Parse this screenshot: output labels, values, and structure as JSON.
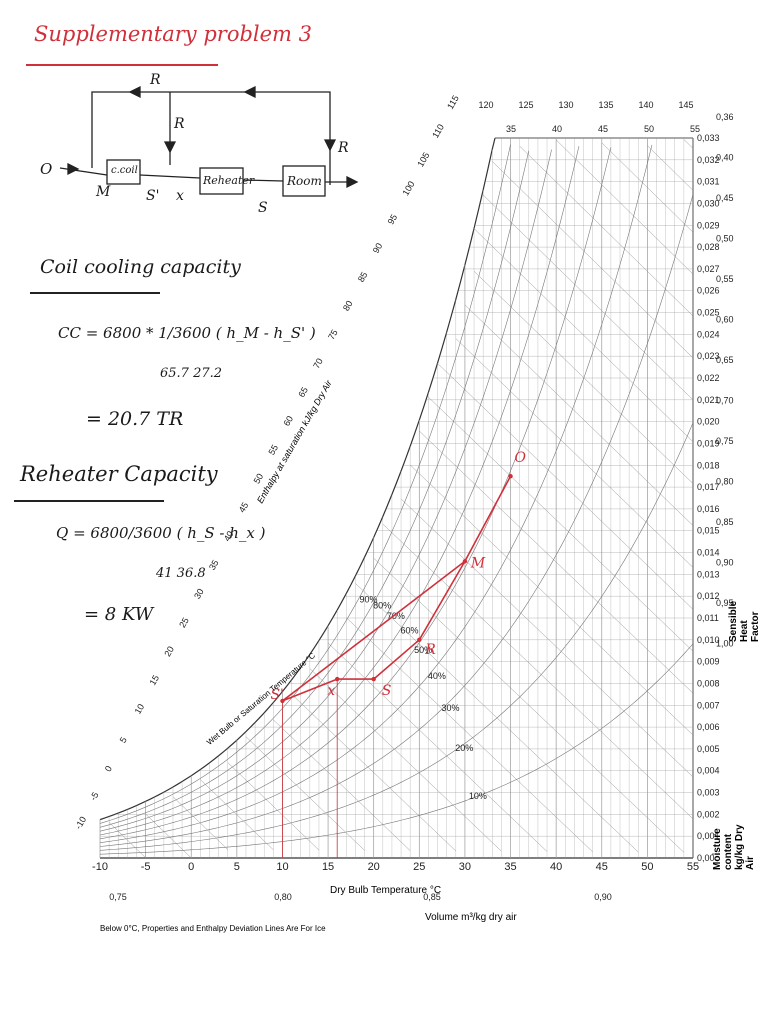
{
  "heading": "Supplementary problem 3",
  "schematic": {
    "labels": {
      "O": "O",
      "M": "M",
      "S1": "S'",
      "x": "x",
      "S": "S",
      "R1": "R",
      "R2": "R",
      "R3": "R"
    },
    "boxes": {
      "coil": "c.coil",
      "reheater": "Reheater",
      "room": "Room"
    }
  },
  "calc": {
    "coil_title": "Coil cooling capacity",
    "cc_eq": "CC = 6800 * 1/3600 ( h_M - h_S' )",
    "cc_vals": "65.7   27.2",
    "cc_result": "= 20.7 TR",
    "reheater_title": "Reheater Capacity",
    "q_eq": "Q = 6800/3600 ( h_S - h_x )",
    "q_vals": "41   36.8",
    "q_result": "= 8 KW"
  },
  "chart_labels": {
    "enthalpy": "Enthalpy at saturation  kJ/kg Dry Air",
    "wetbulb": "Wet Bulb or Saturation Temperature °C",
    "drybulb": "Dry Bulb Temperature  °C",
    "volume": "Volume m³/kg dry air",
    "moisture": "Moisture content  kg/kg Dry Air",
    "shf": "Sensible Heat Factor",
    "footnote": "Below 0°C,  Properties and Enthalpy Deviation Lines Are For Ice"
  },
  "chart_data": {
    "type": "psychrometric",
    "x_ticks": [
      "-10",
      "-5",
      "0",
      "5",
      "10",
      "15",
      "20",
      "25",
      "30",
      "35",
      "40",
      "45",
      "50",
      "55"
    ],
    "y_ticks": [
      "0,00",
      "0,001",
      "0,002",
      "0,003",
      "0,004",
      "0,005",
      "0,006",
      "0,007",
      "0,008",
      "0,009",
      "0,010",
      "0,011",
      "0,012",
      "0,013",
      "0,014",
      "0,015",
      "0,016",
      "0,017",
      "0,018",
      "0,019",
      "0,020",
      "0,021",
      "0,022",
      "0,023",
      "0,024",
      "0,025",
      "0,026",
      "0,027",
      "0,028",
      "0,029",
      "0,030",
      "0,031",
      "0,032",
      "0,033"
    ],
    "volume_ticks": [
      "0,75",
      "0,80",
      "0,85",
      "0,90"
    ],
    "top_enthalpy_ticks": [
      "120",
      "125",
      "130",
      "135",
      "140",
      "145"
    ],
    "top_wb_ticks": [
      "35",
      "40",
      "45",
      "50",
      "55"
    ],
    "shf_ticks": [
      "0,36",
      "0,40",
      "0,45",
      "0,50",
      "0,55",
      "0,60",
      "0,65",
      "0,70",
      "0,75",
      "0,80",
      "0,85",
      "0,90",
      "0,95",
      "1,00"
    ],
    "side_enthalpy_ticks": [
      "115",
      "110",
      "105",
      "100",
      "95",
      "90",
      "85",
      "80",
      "75",
      "70",
      "65",
      "60",
      "55",
      "50",
      "45",
      "40",
      "35",
      "30",
      "25",
      "20",
      "15",
      "10",
      "5",
      "0",
      "-5",
      "-10"
    ],
    "rh_ticks": [
      "10%",
      "20%",
      "30%",
      "40%",
      "50%",
      "60%",
      "70%",
      "80%",
      "90%"
    ],
    "points": [
      {
        "name": "O",
        "db": 35,
        "w": 0.0175
      },
      {
        "name": "M",
        "db": 30,
        "w": 0.0136
      },
      {
        "name": "R",
        "db": 25,
        "w": 0.01
      },
      {
        "name": "S'",
        "db": 10,
        "w": 0.0072
      },
      {
        "name": "x",
        "db": 16,
        "w": 0.0082
      },
      {
        "name": "S",
        "db": 20,
        "w": 0.0082
      }
    ],
    "point_labels": {
      "O": "O",
      "M": "M",
      "R": "R",
      "S1": "S'",
      "x": "x",
      "S": "S"
    }
  }
}
